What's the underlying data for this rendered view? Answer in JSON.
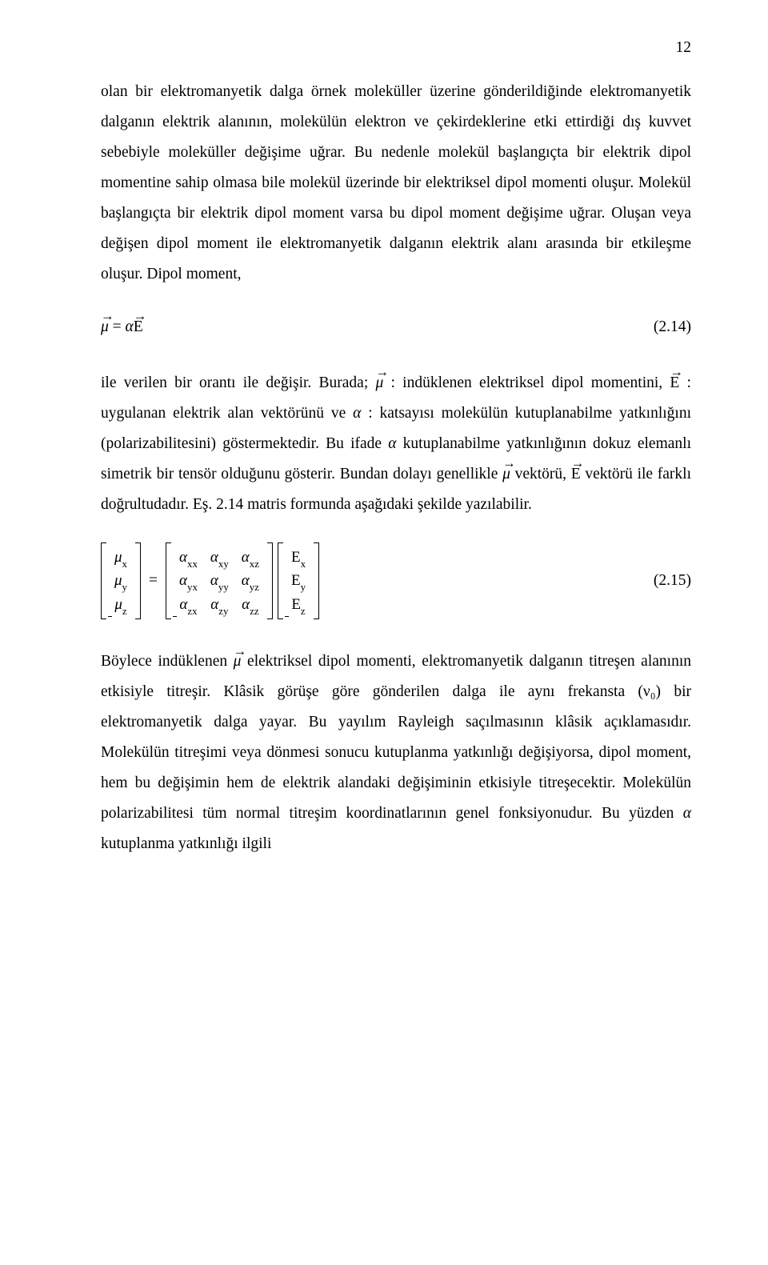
{
  "page_number": "12",
  "paragraphs": {
    "p1": "olan bir elektromanyetik dalga örnek moleküller üzerine gönderildiğinde elektromanyetik dalganın elektrik alanının, molekülün elektron ve çekirdeklerine etki ettirdiği dış kuvvet sebebiyle moleküller değişime uğrar. Bu nedenle molekül başlangıçta bir elektrik dipol momentine sahip olmasa bile molekül üzerinde bir elektriksel dipol momenti oluşur. Molekül başlangıçta bir elektrik dipol moment varsa bu dipol moment değişime uğrar. Oluşan veya değişen dipol moment ile elektromanyetik dalganın elektrik alanı arasında bir etkileşme oluşur. Dipol moment,",
    "p2_pre": "ile verilen bir orantı ile değişir. Burada; ",
    "p2_mid1": " : indüklenen elektriksel dipol momentini, ",
    "p2_mid2": " : uygulanan elektrik alan vektörünü ve ",
    "p2_mid3": " : katsayısı molekülün kutuplanabilme yatkınlığını (polarizabilitesini) göstermektedir. Bu ifade ",
    "p2_mid4": " kutuplanabilme yatkınlığının dokuz elemanlı simetrik bir tensör olduğunu gösterir. Bundan dolayı genellikle ",
    "p2_mid5": " vektörü, ",
    "p2_mid6": " vektörü ile farklı doğrultudadır. Eş. 2.14 matris formunda aşağıdaki şekilde yazılabilir.",
    "p3_pre": "Böylece indüklenen ",
    "p3_rest": " elektriksel dipol momenti, elektromanyetik dalganın titreşen alanının etkisiyle titreşir. Klâsik görüşe göre gönderilen dalga ile aynı frekansta (ν₀) bir elektromanyetik dalga yayar. Bu yayılım Rayleigh saçılmasının klâsik açıklamasıdır. Molekülün titreşimi veya dönmesi sonucu kutuplanma yatkınlığı değişiyorsa, dipol moment, hem bu değişimin hem de elektrik alandaki değişiminin etkisiyle titreşecektir. Molekülün polarizabilitesi tüm normal titreşim koordinatlarının genel fonksiyonudur. Bu yüzden ",
    "p3_end": " kutuplanma yatkınlığı ilgili"
  },
  "symbols": {
    "mu": "μ",
    "alpha": "α",
    "E": "E",
    "arrow": "→"
  },
  "equations": {
    "eq1_num": "(2.14)",
    "eq2_num": "(2.15)",
    "matrix": {
      "mu_col": [
        "μ",
        "μ",
        "μ"
      ],
      "mu_sub": [
        "x",
        "y",
        "z"
      ],
      "alpha_rows": [
        [
          "xx",
          "xy",
          "xz"
        ],
        [
          "yx",
          "yy",
          "yz"
        ],
        [
          "zx",
          "zy",
          "zz"
        ]
      ],
      "E_sub": [
        "x",
        "y",
        "z"
      ]
    }
  }
}
